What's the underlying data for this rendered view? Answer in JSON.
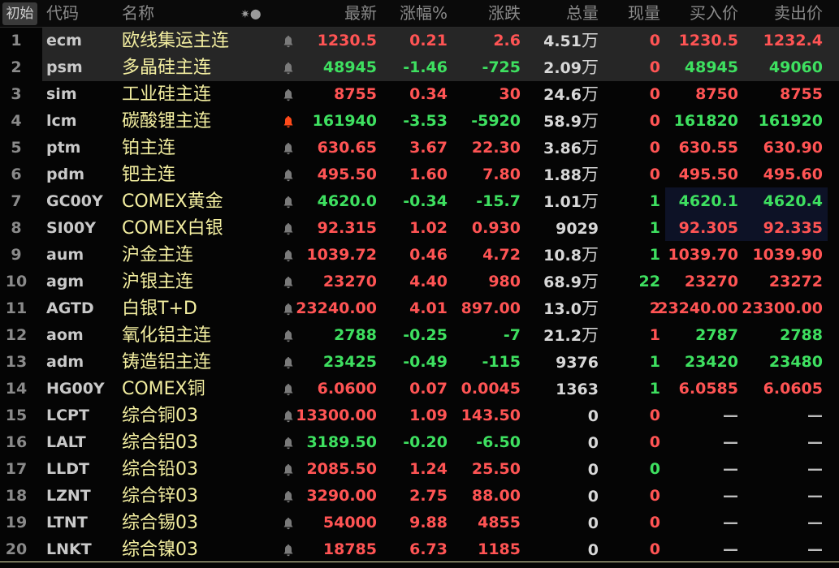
{
  "header": {
    "init_button": "初始",
    "columns": [
      "代码",
      "名称",
      "最新",
      "涨幅%",
      "涨跌",
      "总量",
      "现量",
      "买入价",
      "卖出价"
    ],
    "icons": [
      "sun-icon",
      "circle-icon"
    ]
  },
  "colors": {
    "up": "#ff5454",
    "down": "#3ee060",
    "neutral": "#d8d8d8",
    "name": "#f3eea0",
    "alert_bell": "#ff4a1a"
  },
  "rows": [
    {
      "idx": "1",
      "code": "ecm",
      "name": "欧线集运主连",
      "last": "1230.5",
      "pct": "0.21",
      "chg": "2.6",
      "vol": "4.51",
      "vol_unit": "万",
      "cur": "0",
      "bid": "1230.5",
      "ask": "1232.4",
      "colors": "rrrrrr",
      "selected": true
    },
    {
      "idx": "2",
      "code": "psm",
      "name": "多晶硅主连",
      "last": "48945",
      "pct": "-1.46",
      "chg": "-725",
      "vol": "2.09",
      "vol_unit": "万",
      "cur": "0",
      "bid": "48945",
      "ask": "49060",
      "colors": "gggrgg",
      "selected": true
    },
    {
      "idx": "3",
      "code": "sim",
      "name": "工业硅主连",
      "last": "8755",
      "pct": "0.34",
      "chg": "30",
      "vol": "24.6",
      "vol_unit": "万",
      "cur": "0",
      "bid": "8750",
      "ask": "8755",
      "colors": "rrrrrr"
    },
    {
      "idx": "4",
      "code": "lcm",
      "name": "碳酸锂主连",
      "last": "161940",
      "pct": "-3.53",
      "chg": "-5920",
      "vol": "58.9",
      "vol_unit": "万",
      "cur": "0",
      "bid": "161820",
      "ask": "161920",
      "colors": "gggrgg",
      "alert": true
    },
    {
      "idx": "5",
      "code": "ptm",
      "name": "铂主连",
      "last": "630.65",
      "pct": "3.67",
      "chg": "22.30",
      "vol": "3.86",
      "vol_unit": "万",
      "cur": "0",
      "bid": "630.55",
      "ask": "630.90",
      "colors": "rrrrrr"
    },
    {
      "idx": "6",
      "code": "pdm",
      "name": "钯主连",
      "last": "495.50",
      "pct": "1.60",
      "chg": "7.80",
      "vol": "1.88",
      "vol_unit": "万",
      "cur": "0",
      "bid": "495.50",
      "ask": "495.60",
      "colors": "rrrrrr"
    },
    {
      "idx": "7",
      "code": "GC00Y",
      "name": "COMEX黄金",
      "last": "4620.0",
      "pct": "-0.34",
      "chg": "-15.7",
      "vol": "1.01",
      "vol_unit": "万",
      "cur": "1",
      "bid": "4620.1",
      "ask": "4620.4",
      "colors": "gggggg"
    },
    {
      "idx": "8",
      "code": "SI00Y",
      "name": "COMEX白银",
      "last": "92.315",
      "pct": "1.02",
      "chg": "0.930",
      "vol": "9029",
      "vol_unit": "",
      "cur": "1",
      "bid": "92.305",
      "ask": "92.335",
      "colors": "rrrgrr"
    },
    {
      "idx": "9",
      "code": "aum",
      "name": "沪金主连",
      "last": "1039.72",
      "pct": "0.46",
      "chg": "4.72",
      "vol": "10.8",
      "vol_unit": "万",
      "cur": "1",
      "bid": "1039.70",
      "ask": "1039.90",
      "colors": "rrrgrr"
    },
    {
      "idx": "10",
      "code": "agm",
      "name": "沪银主连",
      "last": "23270",
      "pct": "4.40",
      "chg": "980",
      "vol": "68.9",
      "vol_unit": "万",
      "cur": "22",
      "bid": "23270",
      "ask": "23272",
      "colors": "rrrgrr"
    },
    {
      "idx": "11",
      "code": "AGTD",
      "name": "白银T+D",
      "last": "23240.00",
      "pct": "4.01",
      "chg": "897.00",
      "vol": "13.0",
      "vol_unit": "万",
      "cur": "2",
      "bid": "23240.00",
      "ask": "23300.00",
      "colors": "rrrrrr"
    },
    {
      "idx": "12",
      "code": "aom",
      "name": "氧化铝主连",
      "last": "2788",
      "pct": "-0.25",
      "chg": "-7",
      "vol": "21.2",
      "vol_unit": "万",
      "cur": "1",
      "bid": "2787",
      "ask": "2788",
      "colors": "gggrgg"
    },
    {
      "idx": "13",
      "code": "adm",
      "name": "铸造铝主连",
      "last": "23425",
      "pct": "-0.49",
      "chg": "-115",
      "vol": "9376",
      "vol_unit": "",
      "cur": "1",
      "bid": "23420",
      "ask": "23480",
      "colors": "gggggg"
    },
    {
      "idx": "14",
      "code": "HG00Y",
      "name": "COMEX铜",
      "last": "6.0600",
      "pct": "0.07",
      "chg": "0.0045",
      "vol": "1363",
      "vol_unit": "",
      "cur": "1",
      "bid": "6.0585",
      "ask": "6.0605",
      "colors": "rrrgrr"
    },
    {
      "idx": "15",
      "code": "LCPT",
      "name": "综合铜03",
      "last": "13300.00",
      "pct": "1.09",
      "chg": "143.50",
      "vol": "0",
      "vol_unit": "",
      "cur": "0",
      "bid": "—",
      "ask": "—",
      "colors": "rrrrdd"
    },
    {
      "idx": "16",
      "code": "LALT",
      "name": "综合铝03",
      "last": "3189.50",
      "pct": "-0.20",
      "chg": "-6.50",
      "vol": "0",
      "vol_unit": "",
      "cur": "0",
      "bid": "—",
      "ask": "—",
      "colors": "gggrdd"
    },
    {
      "idx": "17",
      "code": "LLDT",
      "name": "综合铅03",
      "last": "2085.50",
      "pct": "1.24",
      "chg": "25.50",
      "vol": "0",
      "vol_unit": "",
      "cur": "0",
      "bid": "—",
      "ask": "—",
      "colors": "rrrgdd"
    },
    {
      "idx": "18",
      "code": "LZNT",
      "name": "综合锌03",
      "last": "3290.00",
      "pct": "2.75",
      "chg": "88.00",
      "vol": "0",
      "vol_unit": "",
      "cur": "0",
      "bid": "—",
      "ask": "—",
      "colors": "rrrrdd"
    },
    {
      "idx": "19",
      "code": "LTNT",
      "name": "综合锡03",
      "last": "54000",
      "pct": "9.88",
      "chg": "4855",
      "vol": "0",
      "vol_unit": "",
      "cur": "0",
      "bid": "—",
      "ask": "—",
      "colors": "rrrrdd"
    },
    {
      "idx": "20",
      "code": "LNKT",
      "name": "综合镍03",
      "last": "18785",
      "pct": "6.73",
      "chg": "1185",
      "vol": "0",
      "vol_unit": "",
      "cur": "0",
      "bid": "—",
      "ask": "—",
      "colors": "rrrrdd"
    }
  ]
}
